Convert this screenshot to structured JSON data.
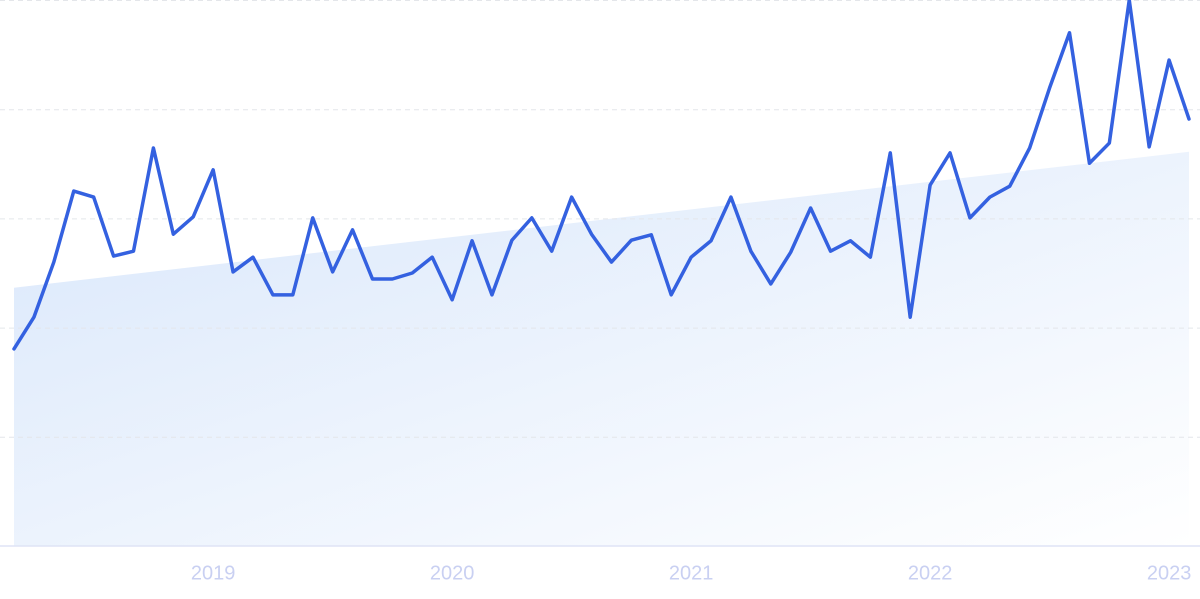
{
  "chart_data": {
    "type": "line",
    "categories": [
      null,
      null,
      null,
      null,
      null,
      null,
      null,
      null,
      null,
      null,
      "2019",
      null,
      null,
      null,
      null,
      null,
      null,
      null,
      null,
      null,
      null,
      null,
      "2020",
      null,
      null,
      null,
      null,
      null,
      null,
      null,
      null,
      null,
      null,
      null,
      "2021",
      null,
      null,
      null,
      null,
      null,
      null,
      null,
      null,
      null,
      null,
      null,
      "2022",
      null,
      null,
      null,
      null,
      null,
      null,
      null,
      null,
      null,
      null,
      null,
      "2023",
      null
    ],
    "values": [
      36.1,
      41.9,
      52.0,
      65.0,
      63.9,
      53.1,
      54.0,
      72.9,
      57.1,
      60.3,
      68.9,
      50.2,
      52.9,
      46.0,
      46.0,
      60.1,
      50.2,
      57.9,
      48.9,
      48.9,
      50.0,
      52.9,
      45.1,
      55.9,
      46.0,
      56.0,
      60.1,
      54.0,
      63.9,
      57.1,
      52.0,
      56.0,
      57.0,
      46.0,
      52.9,
      55.9,
      63.9,
      54.0,
      48.0,
      53.8,
      61.9,
      54.0,
      55.9,
      52.9,
      72.0,
      41.9,
      66.1,
      72.0,
      60.1,
      63.9,
      65.9,
      72.9,
      83.9,
      94.0,
      70.1,
      73.8,
      100,
      73.1,
      89.0,
      78.2
    ],
    "color": "#3461e0",
    "trend": [
      47.3,
      72.2
    ],
    "ylim": [
      0,
      100
    ],
    "yticks": [
      0,
      20,
      40,
      60,
      80,
      100
    ],
    "grid": true
  }
}
